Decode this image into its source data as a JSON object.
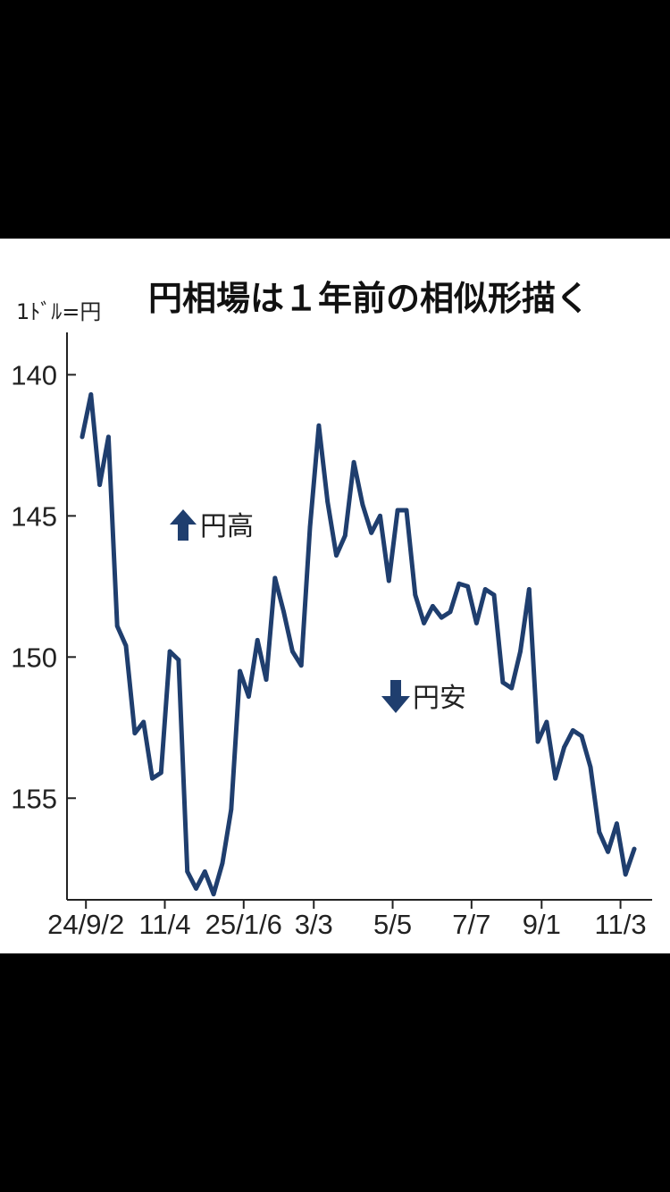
{
  "chart_data": {
    "type": "line",
    "title": "円相場は１年前の相似形描く",
    "ylabel": "1ﾄﾞﾙ=円",
    "y_inverted": true,
    "ylim": [
      138.5,
      158.6
    ],
    "yticks": [
      "140",
      "145",
      "150",
      "155"
    ],
    "xticks": [
      "24/9/2",
      "11/4",
      "25/1/6",
      "3/3",
      "5/5",
      "7/7",
      "9/1",
      "11/3"
    ],
    "annotations": [
      {
        "arrow": "up",
        "text": "円高"
      },
      {
        "arrow": "down",
        "text": "円安"
      }
    ],
    "colors": {
      "line": "#1f3e6e",
      "arrow": "#1f3e6e"
    },
    "series": [
      {
        "x": [
          "24/8/30",
          "24/9/6",
          "24/9/13",
          "24/9/20",
          "24/9/27",
          "24/10/4",
          "24/10/11",
          "24/10/18",
          "24/10/25",
          "24/11/1",
          "24/11/8",
          "24/11/15",
          "24/11/22",
          "24/11/29",
          "24/12/6",
          "24/12/13",
          "24/12/20",
          "24/12/27",
          "25/1/3",
          "25/1/10",
          "25/1/17",
          "25/1/24",
          "25/1/31",
          "25/2/7",
          "25/2/14",
          "25/2/21",
          "25/2/28",
          "25/3/7",
          "25/3/14",
          "25/3/21",
          "25/3/28",
          "25/4/4",
          "25/4/11",
          "25/4/18",
          "25/4/25",
          "25/5/2",
          "25/5/9",
          "25/5/16",
          "25/5/23",
          "25/5/30",
          "25/6/6",
          "25/6/13",
          "25/6/20",
          "25/6/27",
          "25/7/4",
          "25/7/11",
          "25/7/18",
          "25/7/25",
          "25/8/1",
          "25/8/8",
          "25/8/15",
          "25/8/22",
          "25/8/29",
          "25/9/5",
          "25/9/12",
          "25/9/19",
          "25/9/26",
          "25/10/3",
          "25/10/10",
          "25/10/17",
          "25/10/24",
          "25/10/31",
          "25/11/7",
          "25/11/14"
        ],
        "values": [
          142.2,
          140.7,
          143.9,
          142.2,
          148.9,
          149.6,
          152.7,
          152.3,
          154.3,
          154.1,
          149.8,
          150.1,
          157.6,
          158.2,
          157.6,
          158.4,
          157.3,
          155.4,
          150.5,
          151.4,
          149.4,
          150.8,
          147.2,
          148.4,
          149.8,
          150.3,
          145.4,
          141.8,
          144.5,
          146.4,
          145.7,
          143.1,
          144.6,
          145.6,
          145.0,
          147.3,
          144.8,
          144.8,
          147.8,
          148.8,
          148.2,
          148.6,
          148.4,
          147.4,
          147.5,
          148.8,
          147.6,
          147.8,
          150.9,
          151.1,
          149.8,
          147.6,
          153.0,
          152.3,
          154.3,
          153.2,
          152.6,
          152.8,
          153.9,
          156.2,
          156.9,
          155.9,
          157.7,
          156.8
        ],
        "values_note": ""
      }
    ]
  }
}
